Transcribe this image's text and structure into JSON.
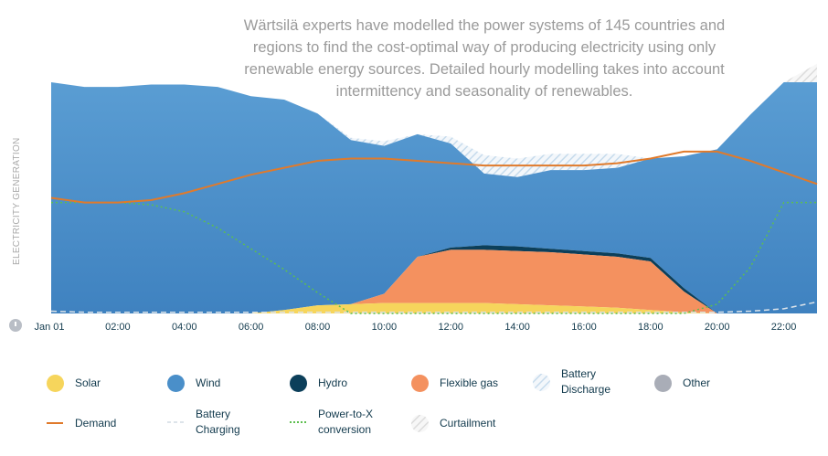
{
  "intro_text": "Wärtsilä experts have modelled the power systems of 145 countries and regions to find the cost-optimal way of producing electricity using only renewable energy sources. Detailed hourly modelling takes into account intermittency and seasonality of renewables.",
  "chart_data": {
    "type": "area",
    "ylabel": "ELECTRICITY GENERATION",
    "x_first_label": "Jan 01",
    "x": [
      "00:00",
      "01:00",
      "02:00",
      "03:00",
      "04:00",
      "05:00",
      "06:00",
      "07:00",
      "08:00",
      "09:00",
      "10:00",
      "11:00",
      "12:00",
      "13:00",
      "14:00",
      "15:00",
      "16:00",
      "17:00",
      "18:00",
      "19:00",
      "20:00",
      "21:00",
      "22:00",
      "23:00"
    ],
    "xtick_labels": [
      "Jan 01",
      "02:00",
      "04:00",
      "06:00",
      "08:00",
      "10:00",
      "12:00",
      "14:00",
      "16:00",
      "18:00",
      "20:00",
      "22:00"
    ],
    "y_unit": "relative (top of chart = 100)",
    "ylim": [
      0,
      100
    ],
    "series": [
      {
        "name": "Solar",
        "type": "stacked-area",
        "color": "#f6d55c",
        "values": [
          0,
          0,
          0,
          0,
          0,
          0,
          0,
          1.5,
          3.5,
          4,
          4.5,
          4.5,
          4.5,
          4.5,
          4,
          3.5,
          3,
          2.5,
          1.5,
          0.5,
          0,
          0,
          0,
          0
        ]
      },
      {
        "name": "Flexible gas",
        "type": "stacked-area",
        "color": "#f4915f",
        "values": [
          0,
          0,
          0,
          0,
          0,
          0,
          0,
          0,
          0,
          0,
          4,
          20,
          23,
          23,
          23,
          23,
          22.5,
          22,
          21,
          9,
          0,
          0,
          0,
          0
        ]
      },
      {
        "name": "Hydro",
        "type": "stacked-area",
        "color": "#0c3f5a",
        "values": [
          0,
          0,
          0,
          0,
          0,
          0,
          0,
          0,
          0,
          0,
          0,
          0,
          1,
          2,
          2,
          1.5,
          1.5,
          1.5,
          1.5,
          1.5,
          0,
          0,
          0,
          0
        ]
      },
      {
        "name": "Wind",
        "type": "stacked-area",
        "color": "#4a8fc9",
        "values": [
          100,
          98,
          98,
          99,
          99,
          98,
          94,
          91,
          83,
          71,
          64,
          53,
          45,
          31,
          30,
          34,
          35,
          37,
          43,
          57,
          71,
          86,
          100,
          100
        ]
      },
      {
        "name": "Battery Discharge",
        "type": "stacked-area",
        "pattern": "diagonal-light-blue",
        "values": [
          0,
          0,
          0,
          0,
          0,
          0,
          0,
          0,
          0,
          1,
          2,
          0,
          3,
          8,
          8,
          7,
          7,
          6,
          0,
          0,
          0,
          0,
          0,
          0
        ]
      },
      {
        "name": "Curtailment",
        "type": "stacked-area",
        "pattern": "diagonal-grey",
        "values": [
          0,
          0,
          0,
          0,
          0,
          0,
          0,
          0,
          0,
          0,
          0,
          0,
          0,
          0,
          0,
          0,
          0,
          0,
          0,
          0,
          0,
          0,
          0,
          8
        ]
      },
      {
        "name": "Demand",
        "type": "line",
        "color": "#e07a2b",
        "values": [
          50,
          48,
          48,
          49,
          52,
          56,
          60,
          63,
          66,
          67,
          67,
          66,
          65,
          64,
          64,
          64,
          64,
          65,
          67,
          70,
          70,
          66,
          61,
          56
        ]
      },
      {
        "name": "Power-to-X conversion",
        "type": "line",
        "dash": "dotted",
        "color": "#5dbf4f",
        "values": [
          48,
          48,
          48,
          47,
          44,
          37,
          28,
          19,
          9,
          0,
          0,
          0,
          0,
          0,
          0,
          0,
          0,
          0,
          0,
          0,
          4,
          20,
          48,
          48
        ]
      },
      {
        "name": "Battery Charging",
        "type": "line",
        "dash": "dashed",
        "color": "#dde4ea",
        "values": [
          1,
          0.5,
          0.5,
          0.5,
          0.5,
          0.5,
          0.5,
          0.5,
          0.5,
          0.5,
          0.5,
          0.5,
          0.5,
          0.5,
          0.5,
          0.5,
          0.5,
          0.5,
          0.5,
          0.5,
          0.5,
          1,
          2,
          5
        ]
      }
    ],
    "grid": false,
    "legend_position": "bottom"
  },
  "legend": [
    {
      "label": "Solar",
      "icon": "solar-icon",
      "kind": "dot",
      "color": "#f6d55c"
    },
    {
      "label": "Wind",
      "icon": "wind-icon",
      "kind": "dot",
      "color": "#4a8fc9"
    },
    {
      "label": "Hydro",
      "icon": "hydro-icon",
      "kind": "dot",
      "color": "#0c3f5a"
    },
    {
      "label": "Flexible gas",
      "icon": "flexible-gas-icon",
      "kind": "dot",
      "color": "#f4915f"
    },
    {
      "label": "Battery Discharge",
      "line1": "Battery",
      "line2": "Discharge",
      "icon": "battery-discharge-icon",
      "kind": "hatch",
      "color": "#cfe1f0"
    },
    {
      "label": "Other",
      "icon": "other-icon",
      "kind": "dot",
      "color": "#a9adb7"
    },
    {
      "label": "Demand",
      "icon": "demand-icon",
      "kind": "line",
      "color": "#e07a2b"
    },
    {
      "label": "Battery Charging",
      "line1": "Battery",
      "line2": "Charging",
      "icon": "battery-charging-icon",
      "kind": "dash",
      "color": "#dde4ea"
    },
    {
      "label": "Power-to-X conversion",
      "line1": "Power-to-X",
      "line2": "conversion",
      "icon": "power-to-x-icon",
      "kind": "dotline",
      "color": "#5dbf4f"
    },
    {
      "label": "Curtailment",
      "icon": "curtailment-icon",
      "kind": "hatch",
      "color": "#d8d8d8"
    }
  ]
}
